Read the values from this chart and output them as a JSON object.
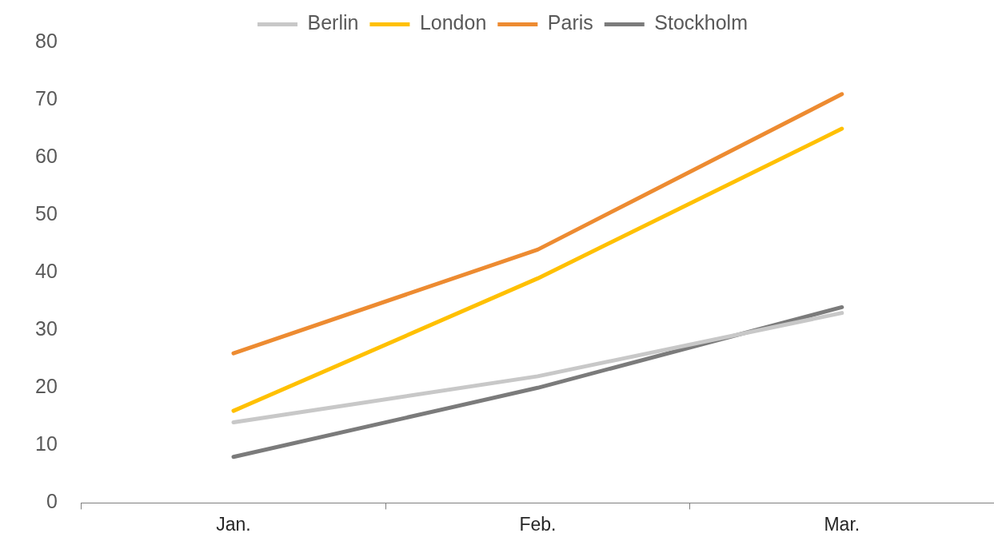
{
  "chart_data": {
    "type": "line",
    "categories": [
      "Jan.",
      "Feb.",
      "Mar."
    ],
    "series": [
      {
        "name": "Berlin",
        "color": "#c8c8c8",
        "values": [
          14,
          22,
          33
        ]
      },
      {
        "name": "London",
        "color": "#ffc000",
        "values": [
          16,
          39,
          65
        ]
      },
      {
        "name": "Paris",
        "color": "#ed8b31",
        "values": [
          26,
          44,
          71
        ]
      },
      {
        "name": "Stockholm",
        "color": "#7b7b7b",
        "values": [
          8,
          20,
          34
        ]
      }
    ],
    "ylim": [
      0,
      80
    ],
    "yticks": [
      0,
      10,
      20,
      30,
      40,
      50,
      60,
      70,
      80
    ],
    "grid": false,
    "legend": "top",
    "marker": "none",
    "line_style": "solid"
  }
}
